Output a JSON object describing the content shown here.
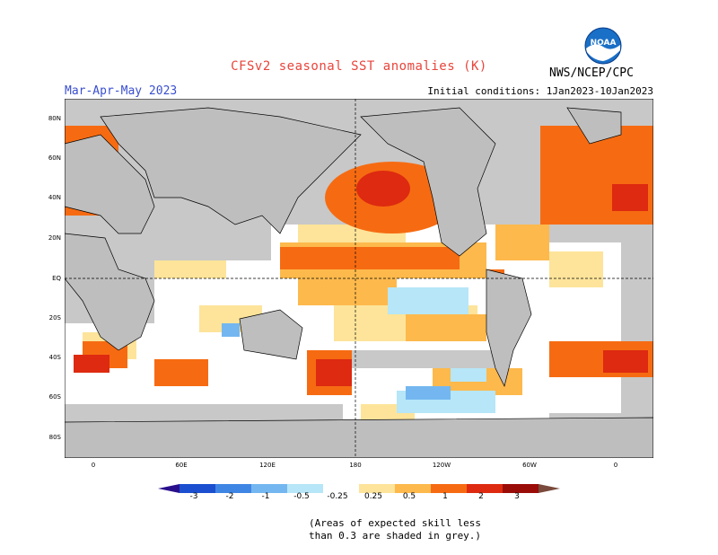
{
  "title": "CFSv2 seasonal SST anomalies (K)",
  "season": "Mar-Apr-May 2023",
  "initial_conditions": "Initial conditions: 1Jan2023-10Jan2023",
  "agency": "NWS/NCEP/CPC",
  "logo": {
    "text": "NOAA",
    "icon": "noaa-logo-icon"
  },
  "lat_labels": [
    "80N",
    "60N",
    "40N",
    "20N",
    "EQ",
    "20S",
    "40S",
    "60S",
    "80S"
  ],
  "lon_labels": [
    "0",
    "60E",
    "120E",
    "180",
    "120W",
    "60W",
    "0"
  ],
  "colorbar": {
    "labels": [
      "-3",
      "-2",
      "-1",
      "-0.5",
      "-0.25",
      "0.25",
      "0.5",
      "1",
      "2",
      "3"
    ],
    "colors": [
      "#2a0f8c",
      "#1b4fd0",
      "#3f86e4",
      "#74b7f0",
      "#b6e6f8",
      "#ffffff",
      "#fde49a",
      "#fdb94c",
      "#f66b12",
      "#dd2a10",
      "#9a0c08",
      "#7a4a3c"
    ]
  },
  "note": {
    "line1": "(Areas of expected skill less",
    "line2": "than 0.3 are shaded in grey.)"
  },
  "colors": {
    "land": "#bebebe",
    "skill_grey": "#c8c8c8",
    "ocean": "#ffffff",
    "title": "#e8453c",
    "season": "#3a4fd0"
  }
}
